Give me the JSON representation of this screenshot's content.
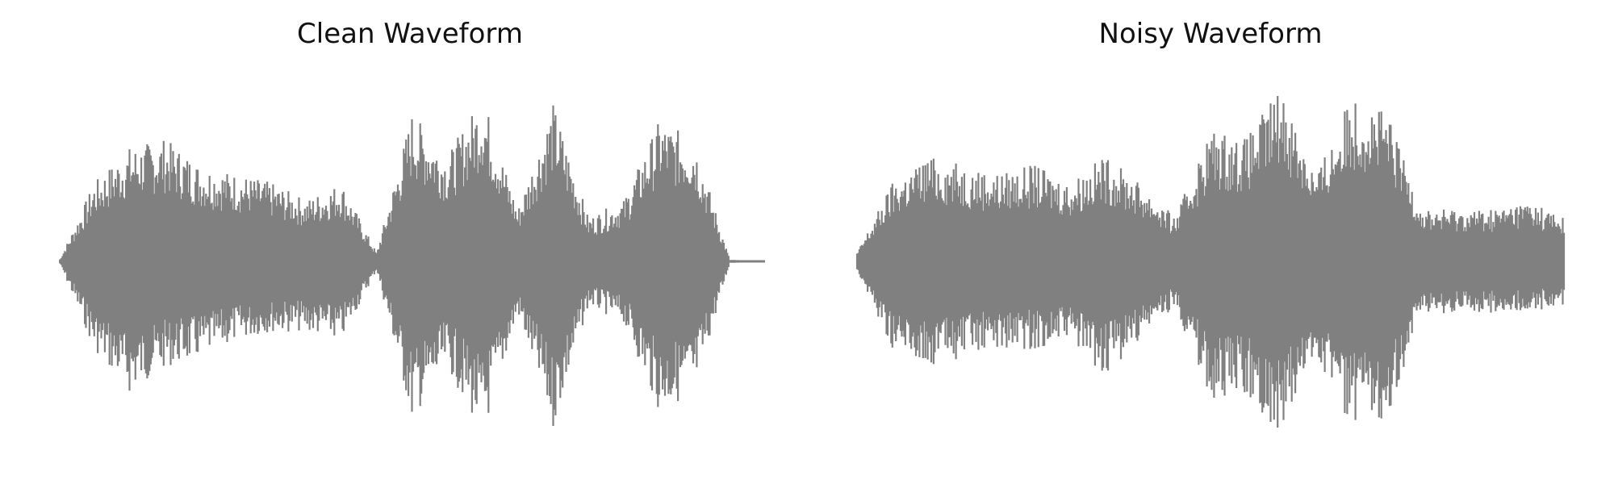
{
  "chart_data": [
    {
      "type": "area",
      "title": "Clean Waveform",
      "xlabel": "",
      "ylabel": "",
      "axes_visible": false,
      "grid": false,
      "color": "#808080",
      "x": [
        0.0,
        0.05,
        0.1,
        0.15,
        0.2,
        0.25,
        0.3,
        0.35,
        0.4,
        0.45,
        0.5,
        0.55,
        0.6,
        0.65,
        0.7,
        0.75,
        0.8,
        0.85,
        0.9,
        0.95,
        1.0
      ],
      "envelope_upper": [
        0.0,
        0.45,
        0.65,
        0.7,
        0.55,
        0.5,
        0.45,
        0.35,
        0.45,
        0.05,
        0.85,
        0.6,
        0.95,
        0.3,
        0.9,
        0.25,
        0.35,
        0.8,
        0.7,
        0.01,
        0.0
      ],
      "envelope_lower": [
        0.0,
        -0.5,
        -0.75,
        -0.6,
        -0.55,
        -0.45,
        -0.4,
        -0.4,
        -0.45,
        -0.05,
        -0.9,
        -0.6,
        -1.0,
        -0.3,
        -0.95,
        -0.25,
        -0.35,
        -0.85,
        -0.75,
        -0.01,
        0.0
      ],
      "ylim": [
        -1.05,
        1.05
      ]
    },
    {
      "type": "area",
      "title": "Noisy Waveform",
      "xlabel": "",
      "ylabel": "",
      "axes_visible": false,
      "grid": false,
      "color": "#808080",
      "x": [
        0.0,
        0.05,
        0.1,
        0.15,
        0.2,
        0.25,
        0.3,
        0.35,
        0.4,
        0.45,
        0.5,
        0.55,
        0.6,
        0.65,
        0.7,
        0.75,
        0.8,
        0.85,
        0.9,
        0.95,
        1.0
      ],
      "envelope_upper": [
        0.05,
        0.45,
        0.6,
        0.55,
        0.5,
        0.55,
        0.45,
        0.6,
        0.45,
        0.25,
        0.75,
        0.7,
        1.0,
        0.5,
        0.95,
        0.85,
        0.3,
        0.3,
        0.3,
        0.35,
        0.25
      ],
      "envelope_lower": [
        -0.05,
        -0.5,
        -0.6,
        -0.55,
        -0.5,
        -0.5,
        -0.45,
        -0.65,
        -0.45,
        -0.25,
        -0.8,
        -0.75,
        -1.0,
        -0.55,
        -0.95,
        -0.9,
        -0.3,
        -0.3,
        -0.3,
        -0.3,
        -0.25
      ],
      "ylim": [
        -1.05,
        1.05
      ]
    }
  ]
}
